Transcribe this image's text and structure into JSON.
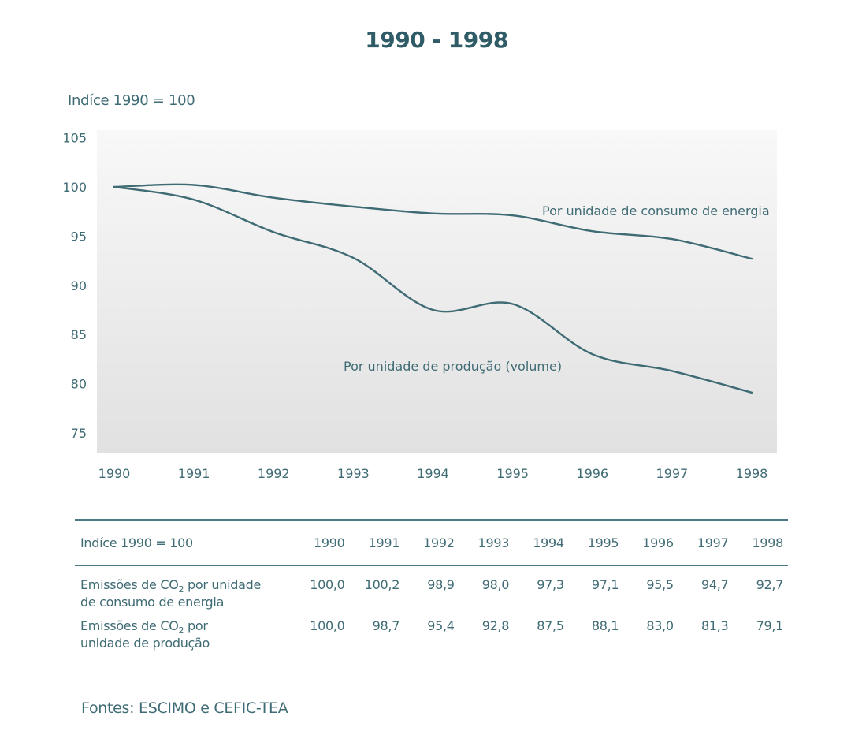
{
  "chart_data": {
    "type": "line",
    "title": "1990 - 1998",
    "ylabel": "Indíce 1990 = 100",
    "xlabel": "",
    "x": [
      1990,
      1991,
      1992,
      1993,
      1994,
      1995,
      1996,
      1997,
      1998
    ],
    "x_tick_labels": [
      "1990",
      "1991",
      "1992",
      "1993",
      "1994",
      "1995",
      "1996",
      "1997",
      "1998"
    ],
    "y_ticks": [
      75,
      80,
      85,
      90,
      95,
      100,
      105
    ],
    "ylim": [
      73,
      106
    ],
    "grid": false,
    "series": [
      {
        "name": "Por unidade de consumo de energia",
        "values": [
          100.0,
          100.2,
          98.9,
          98.0,
          97.3,
          97.1,
          95.5,
          94.7,
          92.7
        ]
      },
      {
        "name": "Por unidade de produção (volume)",
        "values": [
          100.0,
          98.7,
          95.4,
          92.8,
          87.5,
          88.1,
          83.0,
          81.3,
          79.1
        ]
      }
    ]
  },
  "table": {
    "header_label": "Indíce 1990 = 100",
    "years": [
      "1990",
      "1991",
      "1992",
      "1993",
      "1994",
      "1995",
      "1996",
      "1997",
      "1998"
    ],
    "rows": [
      {
        "label_a": "Emissões de CO",
        "label_sub": "2",
        "label_b": " por unidade",
        "label_line2": "de consumo de energia",
        "values": [
          "100,0",
          "100,2",
          "98,9",
          "98,0",
          "97,3",
          "97,1",
          "95,5",
          "94,7",
          "92,7"
        ]
      },
      {
        "label_a": "Emissões de CO",
        "label_sub": "2",
        "label_b": " por",
        "label_line2": "unidade de produção",
        "values": [
          "100,0",
          "98,7",
          "95,4",
          "92,8",
          "87,5",
          "88,1",
          "83,0",
          "81,3",
          "79,1"
        ]
      }
    ]
  },
  "source": "Fontes: ESCIMO e CEFIC-TEA",
  "colors": {
    "line": "#3f6b74",
    "text": "#3f6b74",
    "title": "#2f5c67",
    "plot_bg_top": "#f7f7f7",
    "plot_bg_bottom": "#e2e2e2"
  }
}
